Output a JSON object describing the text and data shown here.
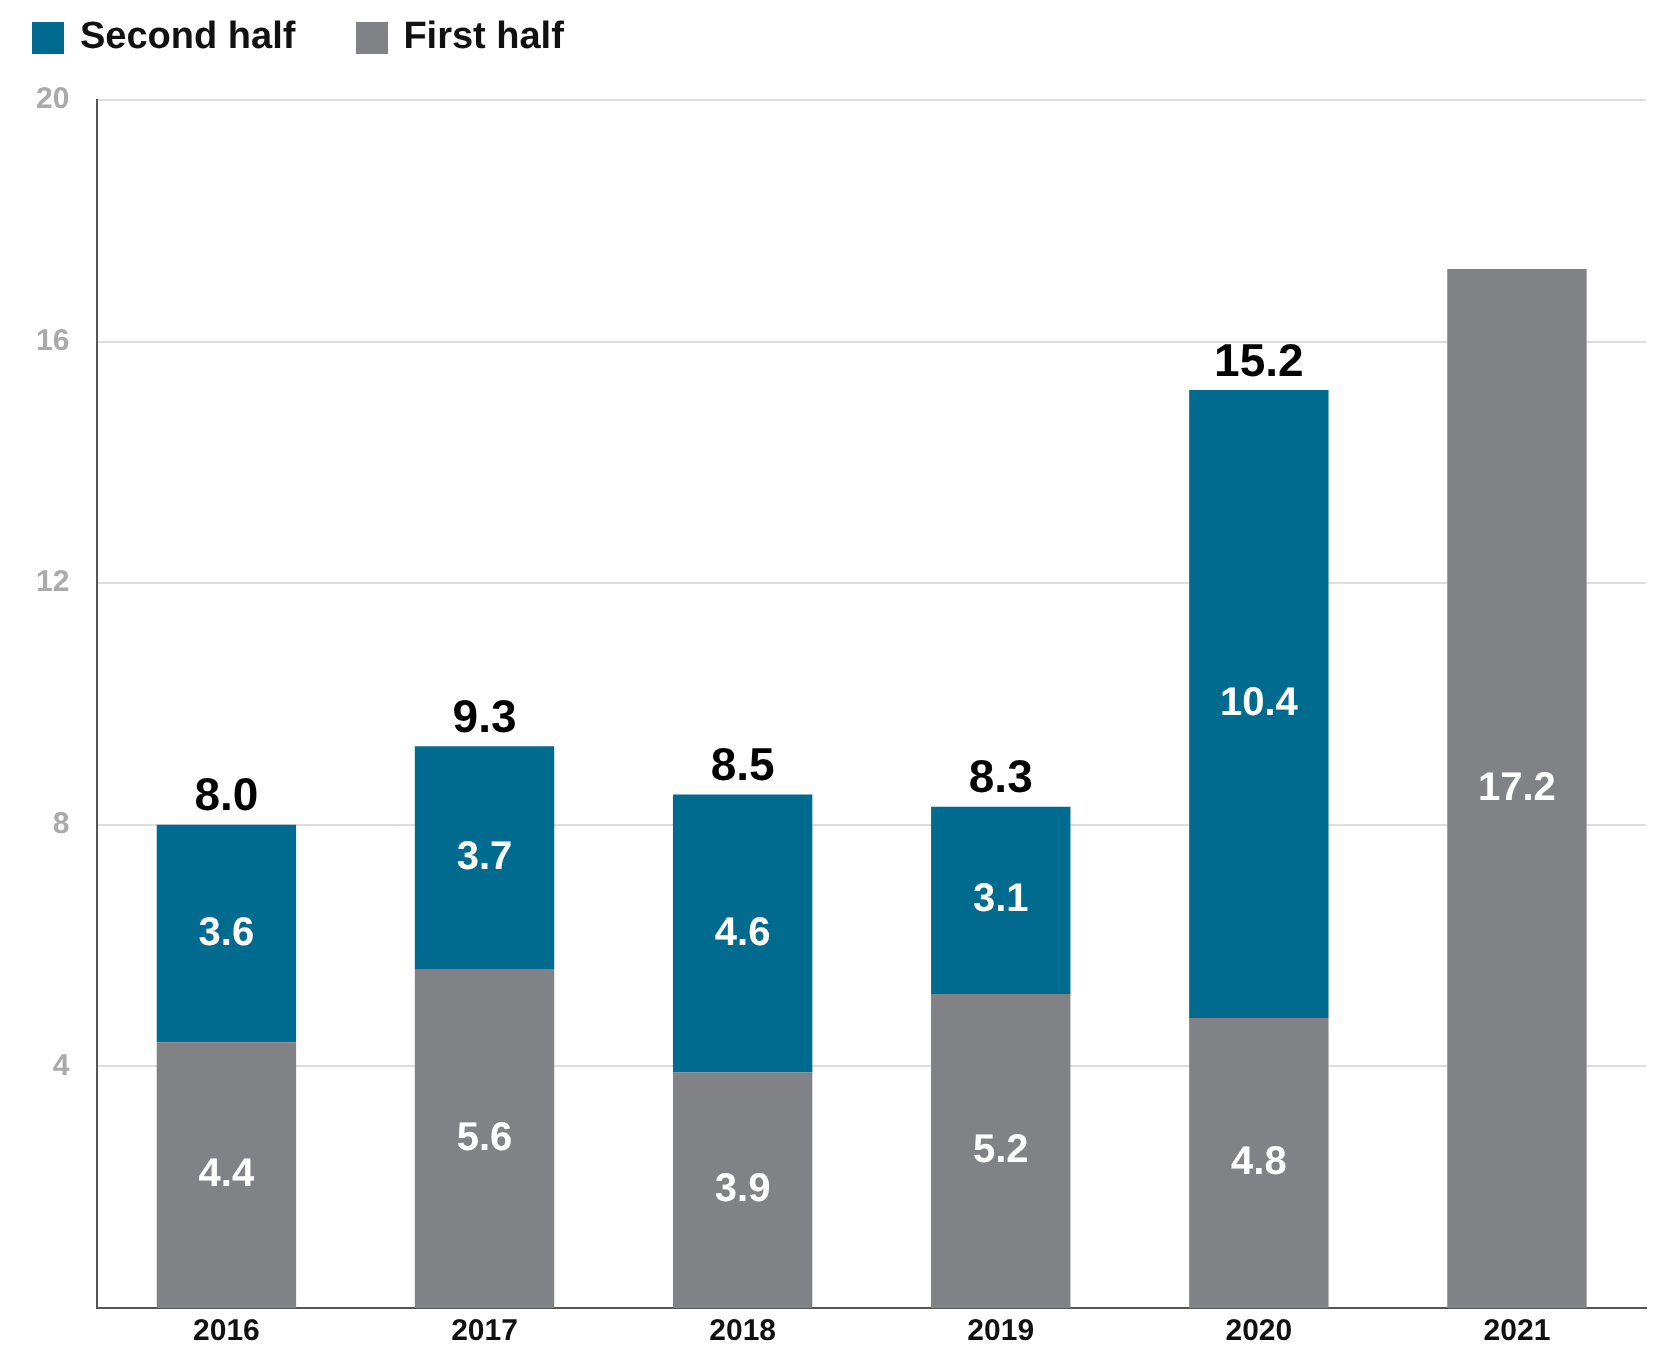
{
  "chart_data": {
    "type": "bar",
    "stacked": true,
    "categories": [
      "2016",
      "2017",
      "2018",
      "2019",
      "2020",
      "2021"
    ],
    "series": [
      {
        "name": "First half",
        "color": "#808285",
        "values": [
          4.4,
          5.6,
          3.9,
          5.2,
          4.8,
          17.2
        ]
      },
      {
        "name": "Second half",
        "color": "#006b8f",
        "values": [
          3.6,
          3.7,
          4.6,
          3.1,
          10.4,
          null
        ]
      }
    ],
    "totals": [
      "8.0",
      "9.3",
      "8.5",
      "8.3",
      "15.2",
      null
    ],
    "data_labels": true,
    "ylim": [
      0,
      20
    ],
    "yticks": [
      4,
      8,
      12,
      16,
      20
    ],
    "grid": "y",
    "legend": "top left"
  }
}
